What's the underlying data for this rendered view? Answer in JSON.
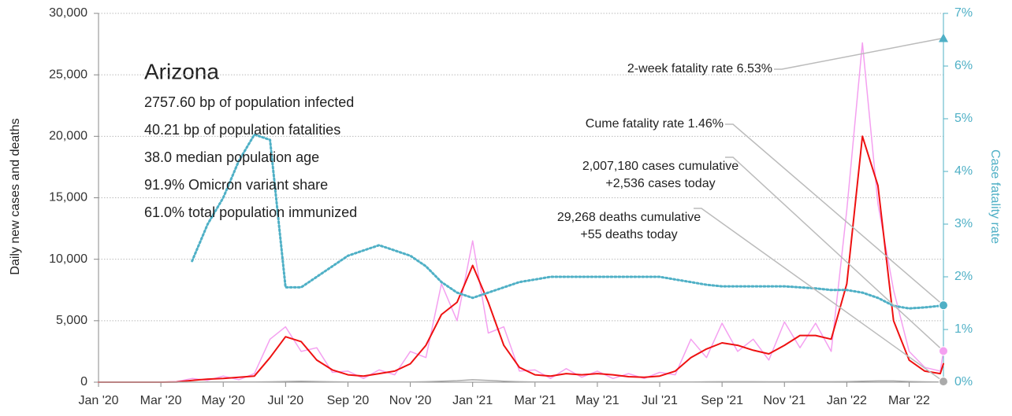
{
  "chart_data": {
    "type": "line",
    "ylabel": "Daily new cases and deaths",
    "y2label": "Case fatality rate",
    "stats_title": "Arizona",
    "stats": [
      "2757.60 bp of population infected",
      "40.21 bp of population fatalities",
      "38.0 median population age",
      "91.9% Omicron variant share",
      "61.0% total population immunized"
    ],
    "x": [
      0,
      0.5,
      1,
      1.5,
      2,
      2.5,
      3,
      3.5,
      4,
      4.5,
      5,
      5.5,
      6,
      6.5,
      7,
      7.5,
      8,
      8.5,
      9,
      9.5,
      10,
      10.5,
      11,
      11.5,
      12,
      12.5,
      13,
      13.5,
      14,
      14.5,
      15,
      15.5,
      16,
      16.5,
      17,
      17.5,
      18,
      18.5,
      19,
      19.5,
      20,
      20.5,
      21,
      21.5,
      22,
      22.5,
      23,
      23.5,
      24,
      24.5,
      25,
      25.5,
      26,
      26.5,
      27,
      27.1
    ],
    "xlim": [
      0,
      27.1
    ],
    "xticks": [
      {
        "value": 0,
        "label": "Jan '20"
      },
      {
        "value": 2,
        "label": "Mar '20"
      },
      {
        "value": 4,
        "label": "May '20"
      },
      {
        "value": 6,
        "label": "Jul '20"
      },
      {
        "value": 8,
        "label": "Sep '20"
      },
      {
        "value": 10,
        "label": "Nov '20"
      },
      {
        "value": 12,
        "label": "Jan '21"
      },
      {
        "value": 14,
        "label": "Mar '21"
      },
      {
        "value": 16,
        "label": "May '21"
      },
      {
        "value": 18,
        "label": "Jul '21"
      },
      {
        "value": 20,
        "label": "Sep '21"
      },
      {
        "value": 22,
        "label": "Nov '21"
      },
      {
        "value": 24,
        "label": "Jan '22"
      },
      {
        "value": 26,
        "label": "Mar '22"
      }
    ],
    "ylim": [
      0,
      30000
    ],
    "yticks": [
      0,
      {
        "value": 5000,
        "label": "5,000"
      },
      {
        "value": 10000,
        "label": "10,000"
      },
      {
        "value": 15000,
        "label": "15,000"
      },
      {
        "value": 20000,
        "label": "20,000"
      },
      {
        "value": 25000,
        "label": "25,000"
      },
      {
        "value": 30000,
        "label": "30,000"
      }
    ],
    "y2lim": [
      0,
      7
    ],
    "y2ticks": [
      {
        "value": 0,
        "label": "0%"
      },
      {
        "value": 1,
        "label": "1%"
      },
      {
        "value": 2,
        "label": "2%"
      },
      {
        "value": 3,
        "label": "3%"
      },
      {
        "value": 4,
        "label": "4%"
      },
      {
        "value": 5,
        "label": "5%"
      },
      {
        "value": 6,
        "label": "6%"
      },
      {
        "value": 7,
        "label": "7%"
      }
    ],
    "grid": true,
    "series": [
      {
        "color": "#f4a0f0",
        "values": [
          0,
          0,
          0,
          0,
          0,
          50,
          300,
          150,
          500,
          200,
          700,
          3500,
          4500,
          2500,
          2800,
          800,
          900,
          300,
          1000,
          600,
          2500,
          2000,
          8000,
          5000,
          11500,
          4000,
          4500,
          900,
          1000,
          300,
          1100,
          400,
          900,
          300,
          700,
          300,
          800,
          600,
          3500,
          2000,
          4800,
          2500,
          3500,
          1800,
          4900,
          2800,
          4800,
          2500,
          14000,
          27600,
          14500,
          7500,
          2500,
          1200,
          900,
          2536
        ]
      },
      {
        "color": "#ee1111",
        "values": [
          0,
          0,
          0,
          0,
          0,
          20,
          150,
          250,
          300,
          400,
          500,
          2000,
          3700,
          3300,
          1800,
          1000,
          600,
          500,
          700,
          900,
          1500,
          3000,
          5500,
          6500,
          9500,
          6500,
          3000,
          1200,
          600,
          500,
          700,
          600,
          700,
          600,
          450,
          400,
          500,
          900,
          2000,
          2700,
          3200,
          3000,
          2600,
          2300,
          3000,
          3800,
          3800,
          3500,
          8000,
          20000,
          16000,
          5000,
          1800,
          900,
          700,
          1500
        ]
      },
      {
        "color": "#aaaaaa",
        "values": [
          0,
          0,
          0,
          0,
          0,
          0,
          5,
          10,
          10,
          10,
          10,
          30,
          60,
          80,
          60,
          30,
          20,
          10,
          10,
          10,
          20,
          40,
          80,
          120,
          200,
          150,
          80,
          40,
          20,
          10,
          10,
          10,
          10,
          10,
          5,
          5,
          5,
          10,
          20,
          30,
          40,
          40,
          40,
          30,
          30,
          40,
          40,
          40,
          50,
          80,
          100,
          100,
          60,
          30,
          20,
          55
        ]
      },
      {
        "color": "#4fb0c6",
        "axis": "y2",
        "dotted": true,
        "values": [
          null,
          null,
          null,
          null,
          null,
          null,
          2.3,
          3.0,
          3.5,
          4.2,
          4.7,
          4.6,
          1.8,
          1.8,
          2.0,
          2.2,
          2.4,
          2.5,
          2.6,
          2.5,
          2.4,
          2.2,
          1.9,
          1.7,
          1.6,
          1.7,
          1.8,
          1.9,
          1.95,
          2.0,
          2.0,
          2.0,
          2.0,
          2.0,
          2.0,
          2.0,
          2.0,
          1.95,
          1.9,
          1.85,
          1.82,
          1.82,
          1.82,
          1.82,
          1.82,
          1.8,
          1.78,
          1.75,
          1.75,
          1.7,
          1.6,
          1.45,
          1.4,
          1.42,
          1.45,
          1.46
        ]
      }
    ],
    "annotations": [
      {
        "lines": [
          "2-week fatality rate 6.53%"
        ],
        "value": 6.53,
        "axis": "y2",
        "marker": "triangle",
        "color": "#4fb0c6"
      },
      {
        "lines": [
          "Cume fatality rate 1.46%"
        ],
        "value": 1.46,
        "axis": "y2",
        "marker": "circle",
        "color": "#4fb0c6"
      },
      {
        "lines": [
          "2,007,180 cases cumulative",
          "+2,536 cases today"
        ],
        "value": 2536,
        "axis": "y",
        "marker": "circle",
        "color": "#f4a0f0"
      },
      {
        "lines": [
          "29,268 deaths cumulative",
          "+55 deaths today"
        ],
        "value": 55,
        "axis": "y",
        "marker": "circle",
        "color": "#aaaaaa"
      }
    ]
  }
}
